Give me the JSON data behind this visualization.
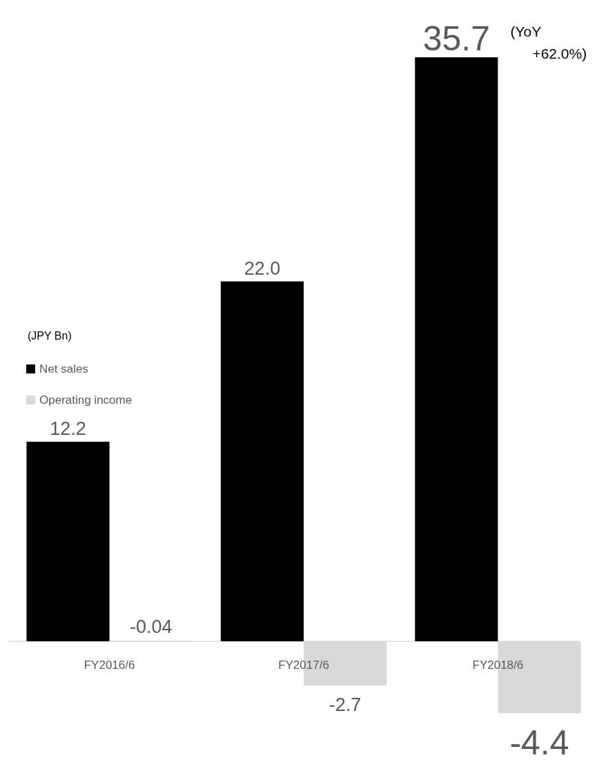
{
  "chart_data": {
    "type": "bar",
    "ylabel": "(JPY Bn)",
    "categories": [
      "FY2016/6",
      "FY2017/6",
      "FY2018/6"
    ],
    "series": [
      {
        "name": "Net sales",
        "color": "#000000",
        "values": [
          12.2,
          22.0,
          35.7
        ],
        "value_labels": [
          "12.2",
          "22.0",
          "35.7"
        ]
      },
      {
        "name": "Operating income",
        "color": "#d9d9d9",
        "values": [
          -0.04,
          -2.7,
          -4.4
        ],
        "value_labels": [
          "-0.04",
          "-2.7",
          "-4.4"
        ]
      }
    ],
    "legend": "left",
    "annotations": [
      {
        "text": "(YoY +62.0%)",
        "x": "FY2018/6",
        "y": 35.7
      }
    ]
  }
}
